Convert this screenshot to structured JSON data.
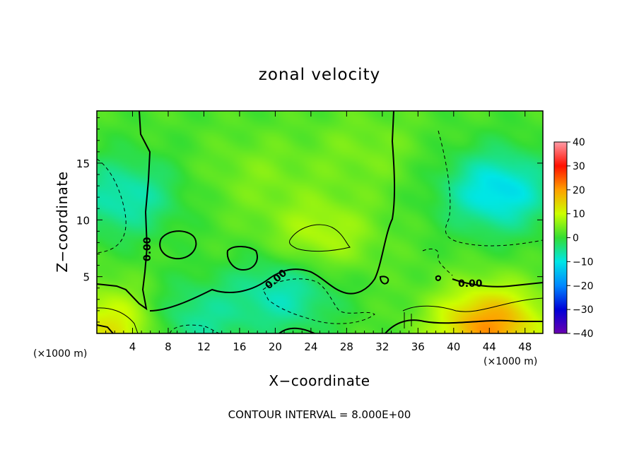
{
  "chart_data": {
    "type": "heatmap",
    "title": "zonal velocity",
    "xlabel": "X−coordinate",
    "ylabel": "Z−coordinate",
    "x_unit": "(×1000 m)",
    "y_unit": "(×1000 m)",
    "xlim": [
      0,
      50
    ],
    "ylim": [
      0,
      19.6
    ],
    "x_ticks": [
      "4",
      "8",
      "12",
      "16",
      "20",
      "24",
      "28",
      "32",
      "36",
      "40",
      "44",
      "48"
    ],
    "x_tick_values": [
      4,
      8,
      12,
      16,
      20,
      24,
      28,
      32,
      36,
      40,
      44,
      48
    ],
    "y_ticks": [
      "5",
      "10",
      "15"
    ],
    "y_tick_values": [
      5,
      10,
      15
    ],
    "colorbar": {
      "ticks": [
        "40",
        "30",
        "20",
        "10",
        "0",
        "−10",
        "−20",
        "−30",
        "−40"
      ],
      "tick_values": [
        40,
        30,
        20,
        10,
        0,
        -10,
        -20,
        -30,
        -40
      ],
      "range": [
        -40,
        40
      ]
    },
    "contour_label": "0.00",
    "contour_interval_text": "CONTOUR INTERVAL = 8.000E+00",
    "field_features": [
      {
        "x": 3,
        "z": 12,
        "value": -9
      },
      {
        "x": 45,
        "z": 12.5,
        "value": -13
      },
      {
        "x": 21,
        "z": 3.5,
        "value": -9
      },
      {
        "x": 10,
        "z": 1,
        "value": -8
      },
      {
        "x": 25,
        "z": 8.5,
        "value": 7
      },
      {
        "x": 44,
        "z": 0.6,
        "value": 19
      },
      {
        "x": 2,
        "z": 0.5,
        "value": 12
      },
      {
        "x": 18,
        "z": 14,
        "value": 3
      },
      {
        "x": 30,
        "z": 16,
        "value": 3
      }
    ]
  }
}
